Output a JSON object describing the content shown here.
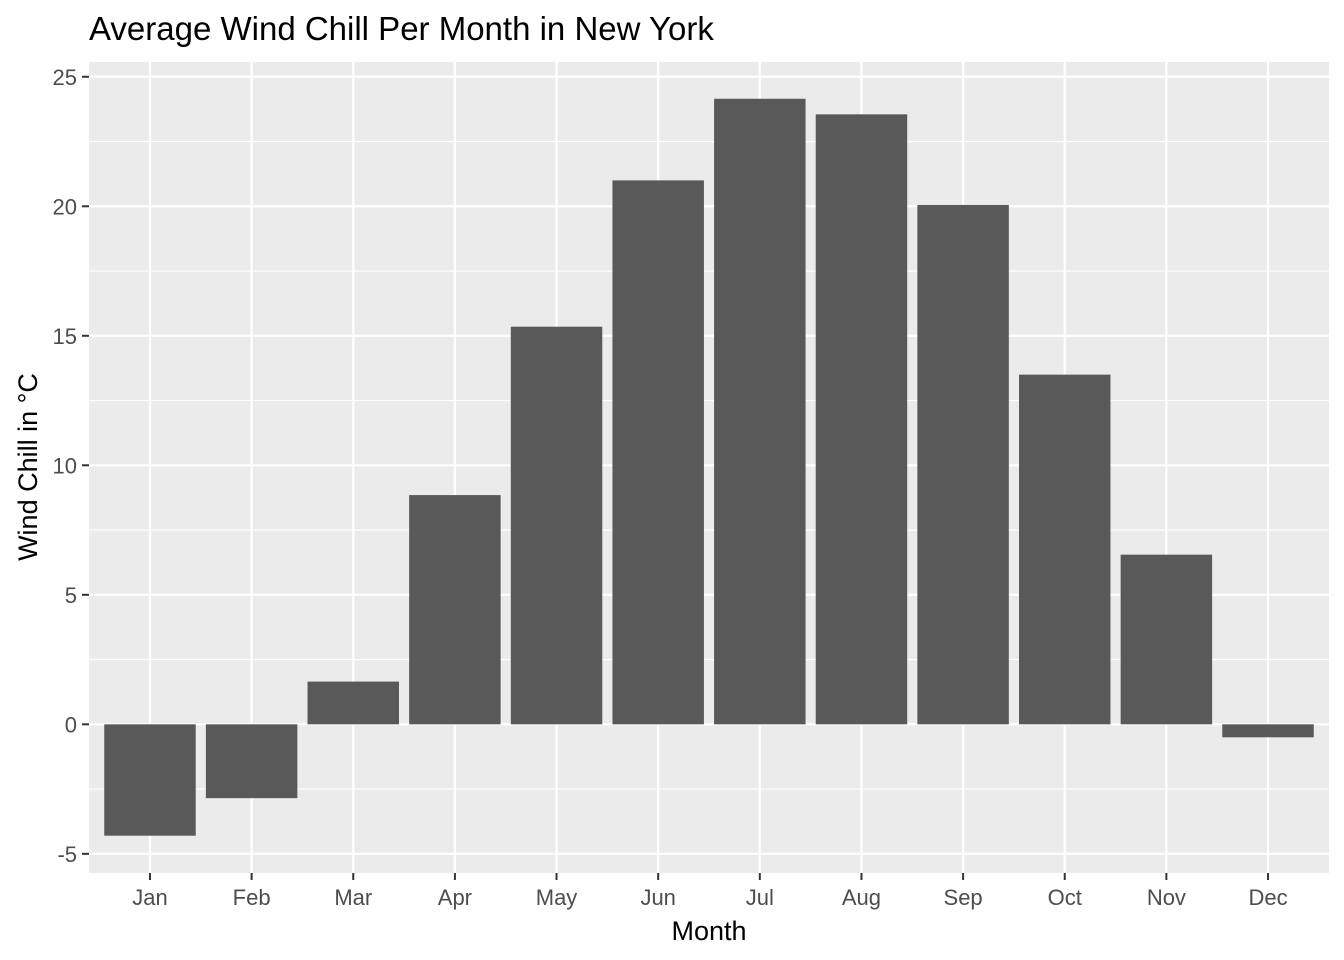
{
  "chart_data": {
    "type": "bar",
    "title": "Average Wind Chill Per Month in New York",
    "xlabel": "Month",
    "ylabel": "Wind Chill in °C",
    "categories": [
      "Jan",
      "Feb",
      "Mar",
      "Apr",
      "May",
      "Jun",
      "Jul",
      "Aug",
      "Sep",
      "Oct",
      "Nov",
      "Dec"
    ],
    "values": [
      -4.3,
      -2.85,
      1.65,
      8.85,
      15.35,
      21.0,
      24.15,
      23.55,
      20.05,
      13.5,
      6.55,
      -0.5
    ],
    "ylim": [
      -5.74,
      25.57
    ],
    "yticks": [
      -5,
      0,
      5,
      10,
      15,
      20,
      25
    ],
    "ytick_labels": [
      "-5",
      "0",
      "5",
      "10",
      "15",
      "20",
      "25"
    ],
    "grid": true,
    "legend": "none",
    "colors": {
      "panel_background": "#ebebeb",
      "grid_major": "#ffffff",
      "bar_fill": "#595959",
      "tick_mark": "#333333",
      "tick_label": "#4d4d4d",
      "text": "#000000"
    }
  }
}
